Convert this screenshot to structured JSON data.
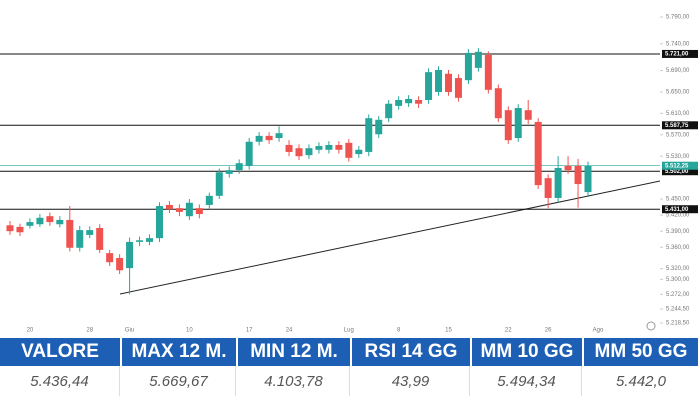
{
  "chart_data": {
    "type": "candlestick",
    "categories": [
      null,
      null,
      "20",
      null,
      null,
      null,
      null,
      null,
      "28",
      null,
      null,
      null,
      "Giu",
      null,
      null,
      null,
      null,
      null,
      "10",
      null,
      null,
      null,
      null,
      null,
      "17",
      null,
      null,
      null,
      "24",
      null,
      null,
      null,
      null,
      null,
      "Lug",
      null,
      null,
      null,
      null,
      "8",
      null,
      null,
      null,
      null,
      "15",
      null,
      null,
      null,
      null,
      null,
      "22",
      null,
      null,
      null,
      "26",
      null,
      null,
      null,
      null,
      "Ago"
    ],
    "open": [
      5401,
      5398,
      5400,
      5403,
      5418,
      5403,
      5411,
      5359,
      5383,
      5396,
      5349,
      5340,
      5321,
      5370,
      5370,
      5377,
      5439,
      5433,
      5418,
      5433,
      5439,
      5456,
      5497,
      5504,
      5512,
      5557,
      5568,
      5564,
      5551,
      5545,
      5532,
      5542,
      5542,
      5551,
      5555,
      5534,
      5538,
      5571,
      5601,
      5624,
      5629,
      5635,
      5635,
      5650,
      5684,
      5676,
      5672,
      5695,
      5719,
      5657,
      5616,
      5564,
      5616,
      5594,
      5489,
      5452,
      5512,
      5512,
      5463,
      null
    ],
    "high": [
      5409,
      5404,
      5414,
      5422,
      5425,
      5418,
      5437,
      5400,
      5399,
      5403,
      5355,
      5347,
      5378,
      5380,
      5384,
      5444,
      5446,
      5440,
      5450,
      5440,
      5462,
      5507,
      5511,
      5524,
      5564,
      5575,
      5575,
      5586,
      5560,
      5552,
      5552,
      5556,
      5558,
      5558,
      5562,
      5549,
      5608,
      5605,
      5635,
      5642,
      5644,
      5642,
      5694,
      5698,
      5691,
      5683,
      5730,
      5732,
      5726,
      5664,
      5623,
      5627,
      5635,
      5601,
      5496,
      5530,
      5530,
      5525,
      5520,
      null
    ],
    "low": [
      5383,
      5381,
      5395,
      5398,
      5400,
      5397,
      5352,
      5352,
      5377,
      5349,
      5325,
      5310,
      5272,
      5362,
      5364,
      5370,
      5424,
      5418,
      5411,
      5414,
      5431,
      5450,
      5490,
      5497,
      5505,
      5550,
      5553,
      5557,
      5530,
      5523,
      5525,
      5535,
      5535,
      5535,
      5520,
      5527,
      5530,
      5564,
      5594,
      5617,
      5622,
      5620,
      5628,
      5643,
      5643,
      5632,
      5665,
      5688,
      5647,
      5594,
      5553,
      5557,
      5590,
      5469,
      5433,
      5444,
      5497,
      5434,
      5456,
      null
    ],
    "close": [
      5390,
      5388,
      5407,
      5415,
      5407,
      5411,
      5359,
      5392,
      5392,
      5355,
      5332,
      5317,
      5370,
      5373,
      5377,
      5437,
      5431,
      5426,
      5443,
      5422,
      5456,
      5500,
      5504,
      5517,
      5557,
      5568,
      5560,
      5573,
      5538,
      5530,
      5545,
      5549,
      5551,
      5542,
      5527,
      5542,
      5601,
      5598,
      5628,
      5635,
      5637,
      5628,
      5687,
      5691,
      5650,
      5639,
      5723,
      5725,
      5654,
      5601,
      5560,
      5620,
      5598,
      5476,
      5452,
      5508,
      5504,
      5478,
      5512.25,
      null
    ],
    "up_color": "#26a69a",
    "down_color": "#ef5350",
    "ylim": [
      5218.5,
      5790
    ],
    "yticks": [
      {
        "value": 5790,
        "label": "5.790,00"
      },
      {
        "value": 5740,
        "label": "5.740,00"
      },
      {
        "value": 5690,
        "label": "5.690,00"
      },
      {
        "value": 5650,
        "label": "5.650,00"
      },
      {
        "value": 5610,
        "label": "5.610,00"
      },
      {
        "value": 5570,
        "label": "5.570,00"
      },
      {
        "value": 5530,
        "label": "5.530,00"
      },
      {
        "value": 5450,
        "label": "5.450,00"
      },
      {
        "value": 5420,
        "label": "5.420,00"
      },
      {
        "value": 5390,
        "label": "5.390,00"
      },
      {
        "value": 5360,
        "label": "5.360,00"
      },
      {
        "value": 5320,
        "label": "5.320,00"
      },
      {
        "value": 5300,
        "label": "5.300,00"
      },
      {
        "value": 5272,
        "label": "5.272,00"
      },
      {
        "value": 5244.5,
        "label": "5.244,50"
      },
      {
        "value": 5218.5,
        "label": "5.218,50"
      }
    ],
    "grid": false,
    "levels": [
      {
        "value": 5721,
        "label": "5.721,00"
      },
      {
        "value": 5587.75,
        "label": "5.587,75"
      },
      {
        "value": 5502,
        "label": "5.502,00"
      },
      {
        "value": 5431,
        "label": "5.431,00"
      }
    ],
    "last_price": {
      "value": 5512.25,
      "label": "5.512,25"
    }
  },
  "table": {
    "headers": [
      "VALORE",
      "MAX 12 M.",
      "MIN 12 M.",
      "RSI 14 GG",
      "MM 10 GG",
      "MM 50 GG"
    ],
    "rows": [
      [
        "5.436,44",
        "5.669,67",
        "4.103,78",
        "43,99",
        "5.494,34",
        "5.442,0"
      ]
    ]
  }
}
